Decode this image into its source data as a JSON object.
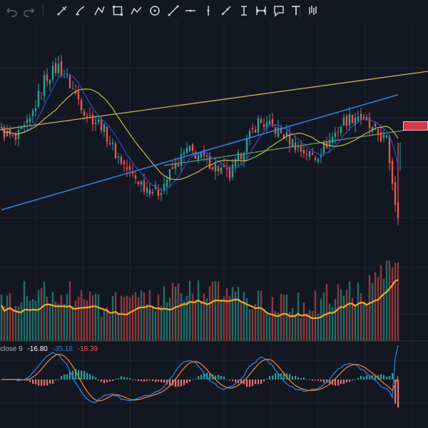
{
  "toolbar": {
    "tools": [
      {
        "name": "undo-icon",
        "glyph": "undo"
      },
      {
        "name": "redo-icon",
        "glyph": "redo"
      },
      {
        "name": "crosshair-icon",
        "glyph": "cross"
      },
      {
        "name": "brush-icon",
        "glyph": "brush"
      },
      {
        "name": "path-icon",
        "glyph": "path"
      },
      {
        "name": "rectangle-icon",
        "glyph": "rect"
      },
      {
        "name": "polyline-icon",
        "glyph": "poly"
      },
      {
        "name": "circle-target-icon",
        "glyph": "circle"
      },
      {
        "name": "trendline-icon",
        "glyph": "trend"
      },
      {
        "name": "horizontal-line-icon",
        "glyph": "hline"
      },
      {
        "name": "vertical-line-icon",
        "glyph": "vline"
      },
      {
        "name": "ray-icon",
        "glyph": "ray"
      },
      {
        "name": "text-cursor-icon",
        "glyph": "ibeam"
      },
      {
        "name": "measure-icon",
        "glyph": "measure"
      },
      {
        "name": "callout-icon",
        "glyph": "callout"
      },
      {
        "name": "text-icon",
        "glyph": "T"
      },
      {
        "name": "bar-pattern-icon",
        "glyph": "bars"
      }
    ]
  },
  "macd_legend": {
    "label": "close 9",
    "macd_value": "-16.80",
    "signal_value": "-35.18",
    "hist_value": "-18.39"
  },
  "colors": {
    "background": "#131722",
    "grid": "#1f2533",
    "up_candle": "#26a69a",
    "down_candle": "#ef5350",
    "ma_fast": "#2f4bd1",
    "ma_mid": "#c9b84a",
    "ma_slow": "#2e7fd9",
    "upper_channel": "#c8b458",
    "lower_channel": "#58a06a",
    "volume_ma": "#f5a623",
    "macd_line": "#2e7fd9",
    "signal_line": "#ef7a3c",
    "price_tag": "#d43a47"
  },
  "chart_data": {
    "type": "candlestick",
    "panes": [
      "price",
      "volume",
      "macd"
    ],
    "price": {
      "candle_count": 140,
      "close_series_anchors": [
        [
          0,
          0.56
        ],
        [
          5,
          0.5
        ],
        [
          10,
          0.62
        ],
        [
          15,
          0.88
        ],
        [
          20,
          0.96
        ],
        [
          25,
          0.82
        ],
        [
          30,
          0.66
        ],
        [
          35,
          0.6
        ],
        [
          40,
          0.42
        ],
        [
          45,
          0.3
        ],
        [
          50,
          0.22
        ],
        [
          55,
          0.18
        ],
        [
          60,
          0.32
        ],
        [
          65,
          0.44
        ],
        [
          70,
          0.4
        ],
        [
          75,
          0.34
        ],
        [
          80,
          0.28
        ],
        [
          85,
          0.46
        ],
        [
          90,
          0.62
        ],
        [
          95,
          0.58
        ],
        [
          100,
          0.52
        ],
        [
          105,
          0.44
        ],
        [
          110,
          0.4
        ],
        [
          115,
          0.5
        ],
        [
          120,
          0.62
        ],
        [
          125,
          0.66
        ],
        [
          130,
          0.56
        ],
        [
          135,
          0.5
        ],
        [
          139,
          0.0
        ]
      ],
      "indicators": [
        "MA fast",
        "MA mid",
        "MA slow"
      ],
      "trendlines": [
        "upper channel",
        "lower channel"
      ]
    },
    "volume": {
      "has_moving_average": true
    },
    "macd": {
      "label": "close 9",
      "macd": -16.8,
      "signal": -35.18,
      "histogram": -18.39
    }
  }
}
